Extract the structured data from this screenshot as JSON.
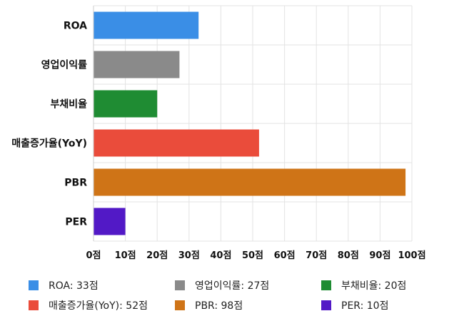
{
  "chart_data": {
    "type": "bar",
    "orientation": "horizontal",
    "categories": [
      "ROA",
      "영업이익률",
      "부채비율",
      "매출증가율(YoY)",
      "PBR",
      "PER"
    ],
    "values": [
      33,
      27,
      20,
      52,
      98,
      10
    ],
    "colors": [
      "#3a8ee6",
      "#8a8a8a",
      "#1f8c33",
      "#ea4c3b",
      "#cf7417",
      "#5219c6"
    ],
    "xlim": [
      0,
      100
    ],
    "x_ticks": [
      0,
      10,
      20,
      30,
      40,
      50,
      60,
      70,
      80,
      90,
      100
    ],
    "tick_suffix": "점",
    "grid": true,
    "legend_position": "bottom",
    "legend": [
      "ROA: 33점",
      "영업이익률: 27점",
      "부채비율: 20점",
      "매출증가율(YoY): 52점",
      "PBR: 98점",
      "PER: 10점"
    ]
  }
}
